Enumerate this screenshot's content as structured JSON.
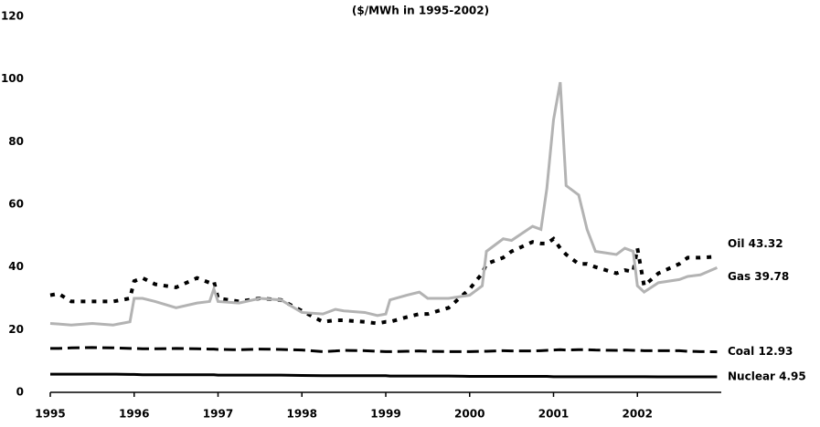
{
  "chart_data": {
    "type": "line",
    "title": "($/MWh in 1995-2002)",
    "x": [
      1995,
      1995.1,
      1995.25,
      1995.5,
      1995.75,
      1995.95,
      1996,
      1996.1,
      1996.25,
      1996.5,
      1996.75,
      1996.9,
      1996.95,
      1997,
      1997.25,
      1997.5,
      1997.75,
      1998,
      1998.25,
      1998.4,
      1998.5,
      1998.75,
      1998.9,
      1999,
      1999.05,
      1999.25,
      1999.4,
      1999.5,
      1999.75,
      2000,
      2000.15,
      2000.2,
      2000.4,
      2000.5,
      2000.75,
      2000.85,
      2000.92,
      2001,
      2001.08,
      2001.15,
      2001.3,
      2001.4,
      2001.5,
      2001.75,
      2001.85,
      2001.95,
      2002,
      2002.08,
      2002.25,
      2002.5,
      2002.6,
      2002.75,
      2002.95
    ],
    "xlim": [
      1995,
      2003
    ],
    "xticks": [
      1995,
      1996,
      1997,
      1998,
      1999,
      2000,
      2001,
      2002
    ],
    "ylim": [
      0,
      120
    ],
    "yticks": [
      0,
      20,
      40,
      60,
      80,
      100,
      120
    ],
    "series": [
      {
        "name": "Oil 43.32",
        "color": "#000000",
        "dash": "5,7",
        "width": 4,
        "values": [
          31,
          31.5,
          29,
          29,
          29,
          30,
          35.5,
          36.5,
          34.5,
          33.5,
          36.5,
          35,
          35.5,
          30,
          29,
          30,
          29.5,
          26,
          22.5,
          23,
          23,
          22.5,
          22,
          22.5,
          22.5,
          24,
          25,
          25,
          27,
          33,
          38,
          41,
          43,
          45,
          48,
          47.5,
          47.5,
          49,
          46,
          44,
          41,
          41,
          40,
          38,
          39,
          38.5,
          46,
          34,
          38,
          41,
          43,
          43,
          43.32
        ]
      },
      {
        "name": "Gas 39.78",
        "color": "#b3b3b3",
        "dash": "none",
        "width": 3,
        "values": [
          22,
          21.8,
          21.5,
          22,
          21.5,
          22.5,
          30,
          30,
          29,
          27,
          28.5,
          29,
          33,
          29,
          28.5,
          30,
          29.5,
          25.5,
          25,
          26.5,
          26,
          25.5,
          24.5,
          25,
          29.5,
          31,
          32,
          30,
          30,
          31,
          34,
          45,
          49,
          48.5,
          53,
          52,
          65,
          87,
          99,
          66,
          63,
          52,
          45,
          44,
          46,
          45,
          34,
          32,
          35,
          36,
          37,
          37.5,
          39.78
        ]
      },
      {
        "name": "Coal 12.93",
        "color": "#000000",
        "dash": "13,6",
        "width": 3,
        "values": [
          14,
          14,
          14.2,
          14.3,
          14.2,
          14,
          14,
          13.9,
          13.9,
          14,
          13.9,
          13.8,
          13.8,
          13.7,
          13.6,
          13.8,
          13.7,
          13.5,
          13,
          13.2,
          13.4,
          13.3,
          13.1,
          13,
          13,
          13.1,
          13.2,
          13.1,
          13,
          13,
          13.1,
          13.1,
          13.3,
          13.2,
          13.2,
          13.3,
          13.4,
          13.5,
          13.6,
          13.5,
          13.6,
          13.6,
          13.5,
          13.4,
          13.5,
          13.4,
          13.4,
          13.3,
          13.3,
          13.3,
          13.1,
          13,
          12.93
        ]
      },
      {
        "name": "Nuclear 4.95",
        "color": "#000000",
        "dash": "none",
        "width": 3,
        "values": [
          5.8,
          5.8,
          5.8,
          5.8,
          5.8,
          5.7,
          5.7,
          5.6,
          5.6,
          5.6,
          5.6,
          5.6,
          5.6,
          5.5,
          5.5,
          5.5,
          5.5,
          5.4,
          5.3,
          5.3,
          5.3,
          5.3,
          5.3,
          5.3,
          5.2,
          5.2,
          5.2,
          5.2,
          5.2,
          5.1,
          5.1,
          5.1,
          5.1,
          5.1,
          5.1,
          5.1,
          5.1,
          5,
          5,
          5,
          5,
          5,
          5,
          5,
          5,
          5,
          5,
          5,
          4.95,
          4.95,
          4.95,
          4.95,
          4.95
        ]
      }
    ]
  }
}
